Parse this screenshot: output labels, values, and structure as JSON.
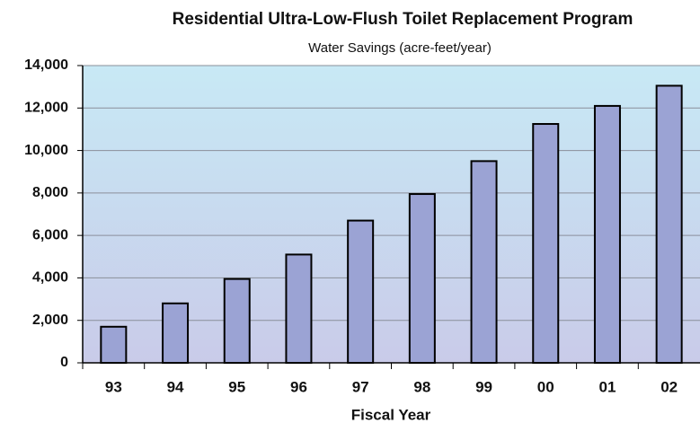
{
  "chart_data": {
    "type": "bar",
    "title": "Residential Ultra-Low-Flush Toilet Replacement Program",
    "subtitle": "Water Savings (acre-feet/year)",
    "x_label": "Fiscal Year",
    "categories": [
      "93",
      "94",
      "95",
      "96",
      "97",
      "98",
      "99",
      "00",
      "01",
      "02"
    ],
    "values": [
      1700,
      2800,
      3950,
      5100,
      6700,
      7950,
      9500,
      11250,
      12100,
      13050
    ],
    "color": "#9ba3d4",
    "ylim": [
      0,
      14000
    ],
    "yticks": [
      0,
      {
        "value": 2000,
        "label": "2,000"
      },
      {
        "value": 4000,
        "label": "4,000"
      },
      {
        "value": 6000,
        "label": "6,000"
      },
      {
        "value": 8000,
        "label": "8,000"
      },
      {
        "value": 10000,
        "label": "10,000"
      },
      {
        "value": 12000,
        "label": "12,000"
      },
      {
        "value": 14000,
        "label": "14,000"
      }
    ],
    "grid": true
  }
}
